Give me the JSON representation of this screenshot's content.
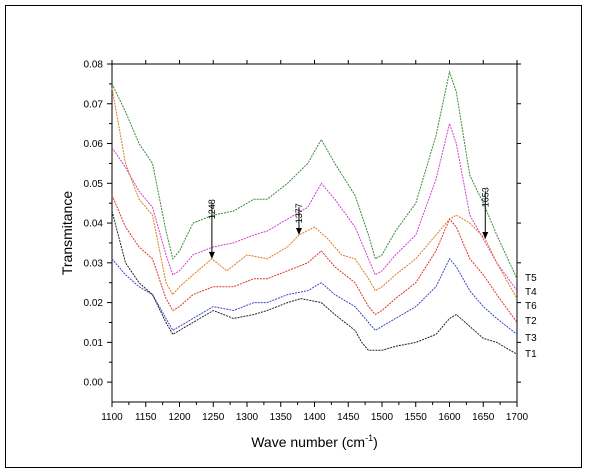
{
  "chart_data": {
    "type": "line",
    "title": "",
    "xlabel": "Wave number (cm",
    "xlabel_sup": "-1",
    "xlabel_close": ")",
    "ylabel": "Transmitance",
    "xlim": [
      1100,
      1700
    ],
    "ylim": [
      -0.005,
      0.08
    ],
    "x_ticks": [
      "1100",
      "1150",
      "1200",
      "1250",
      "1300",
      "1350",
      "1400",
      "1450",
      "1500",
      "1550",
      "1600",
      "1650",
      "1700"
    ],
    "y_ticks": [
      "0.00",
      "0.01",
      "0.02",
      "0.03",
      "0.04",
      "0.05",
      "0.06",
      "0.07",
      "0.08"
    ],
    "grid": false,
    "legend": "inline-right",
    "series": [
      {
        "name": "T5",
        "color": "#3a8a3a",
        "x": [
          1100,
          1120,
          1140,
          1160,
          1180,
          1190,
          1200,
          1220,
          1250,
          1280,
          1310,
          1330,
          1360,
          1390,
          1410,
          1430,
          1460,
          1480,
          1490,
          1500,
          1520,
          1550,
          1580,
          1600,
          1610,
          1630,
          1650,
          1670,
          1700
        ],
        "values": [
          0.075,
          0.068,
          0.06,
          0.055,
          0.038,
          0.031,
          0.033,
          0.04,
          0.042,
          0.043,
          0.046,
          0.046,
          0.05,
          0.055,
          0.061,
          0.055,
          0.047,
          0.037,
          0.031,
          0.032,
          0.038,
          0.045,
          0.062,
          0.078,
          0.073,
          0.052,
          0.045,
          0.037,
          0.026
        ]
      },
      {
        "name": "T4",
        "color": "#d23fd2",
        "x": [
          1100,
          1120,
          1140,
          1160,
          1180,
          1190,
          1200,
          1220,
          1250,
          1280,
          1310,
          1330,
          1360,
          1390,
          1410,
          1430,
          1460,
          1480,
          1490,
          1500,
          1520,
          1550,
          1580,
          1600,
          1610,
          1630,
          1650,
          1670,
          1700
        ],
        "values": [
          0.059,
          0.054,
          0.048,
          0.044,
          0.032,
          0.027,
          0.028,
          0.032,
          0.034,
          0.035,
          0.037,
          0.038,
          0.041,
          0.044,
          0.05,
          0.046,
          0.039,
          0.031,
          0.027,
          0.028,
          0.032,
          0.037,
          0.051,
          0.065,
          0.06,
          0.042,
          0.036,
          0.03,
          0.023
        ]
      },
      {
        "name": "T6",
        "color": "#e07a1c",
        "x": [
          1100,
          1120,
          1140,
          1160,
          1180,
          1190,
          1200,
          1220,
          1248,
          1270,
          1300,
          1330,
          1360,
          1377,
          1400,
          1420,
          1440,
          1460,
          1480,
          1490,
          1500,
          1520,
          1550,
          1580,
          1600,
          1610,
          1630,
          1653,
          1670,
          1700
        ],
        "values": [
          0.074,
          0.055,
          0.046,
          0.042,
          0.025,
          0.022,
          0.024,
          0.027,
          0.031,
          0.028,
          0.032,
          0.031,
          0.034,
          0.037,
          0.039,
          0.036,
          0.032,
          0.031,
          0.026,
          0.023,
          0.024,
          0.027,
          0.031,
          0.037,
          0.041,
          0.042,
          0.04,
          0.036,
          0.03,
          0.021
        ]
      },
      {
        "name": "T2",
        "color": "#e0362a",
        "x": [
          1100,
          1120,
          1140,
          1160,
          1180,
          1190,
          1200,
          1220,
          1250,
          1280,
          1310,
          1330,
          1360,
          1390,
          1410,
          1430,
          1460,
          1480,
          1490,
          1500,
          1520,
          1550,
          1580,
          1600,
          1610,
          1630,
          1650,
          1670,
          1700
        ],
        "values": [
          0.047,
          0.039,
          0.034,
          0.031,
          0.021,
          0.018,
          0.019,
          0.022,
          0.024,
          0.024,
          0.026,
          0.026,
          0.028,
          0.03,
          0.033,
          0.029,
          0.025,
          0.019,
          0.017,
          0.018,
          0.021,
          0.025,
          0.033,
          0.041,
          0.039,
          0.031,
          0.027,
          0.022,
          0.015
        ]
      },
      {
        "name": "T3",
        "color": "#3a46c8",
        "x": [
          1100,
          1120,
          1140,
          1160,
          1180,
          1190,
          1200,
          1220,
          1250,
          1280,
          1310,
          1330,
          1360,
          1390,
          1410,
          1430,
          1460,
          1480,
          1490,
          1500,
          1520,
          1550,
          1580,
          1600,
          1610,
          1630,
          1650,
          1670,
          1700
        ],
        "values": [
          0.031,
          0.027,
          0.024,
          0.022,
          0.016,
          0.013,
          0.014,
          0.016,
          0.019,
          0.018,
          0.02,
          0.02,
          0.022,
          0.023,
          0.025,
          0.022,
          0.019,
          0.015,
          0.013,
          0.014,
          0.016,
          0.019,
          0.024,
          0.031,
          0.029,
          0.023,
          0.019,
          0.016,
          0.012
        ]
      },
      {
        "name": "T1",
        "color": "#222222",
        "x": [
          1100,
          1120,
          1140,
          1160,
          1180,
          1190,
          1200,
          1220,
          1250,
          1280,
          1310,
          1330,
          1360,
          1380,
          1410,
          1430,
          1460,
          1470,
          1480,
          1490,
          1500,
          1520,
          1550,
          1580,
          1600,
          1610,
          1630,
          1650,
          1670,
          1700
        ],
        "values": [
          0.043,
          0.03,
          0.025,
          0.022,
          0.015,
          0.012,
          0.013,
          0.015,
          0.018,
          0.016,
          0.017,
          0.018,
          0.02,
          0.021,
          0.02,
          0.017,
          0.013,
          0.01,
          0.008,
          0.008,
          0.008,
          0.009,
          0.01,
          0.012,
          0.016,
          0.017,
          0.014,
          0.011,
          0.01,
          0.007
        ]
      }
    ],
    "annotations": [
      {
        "text": "1248",
        "x": 1248,
        "y_tip": 0.031,
        "y_text_top": 0.046
      },
      {
        "text": "1377",
        "x": 1377,
        "y_tip": 0.037,
        "y_text_top": 0.045
      },
      {
        "text": "1653",
        "x": 1653,
        "y_tip": 0.036,
        "y_text_top": 0.049
      }
    ]
  }
}
